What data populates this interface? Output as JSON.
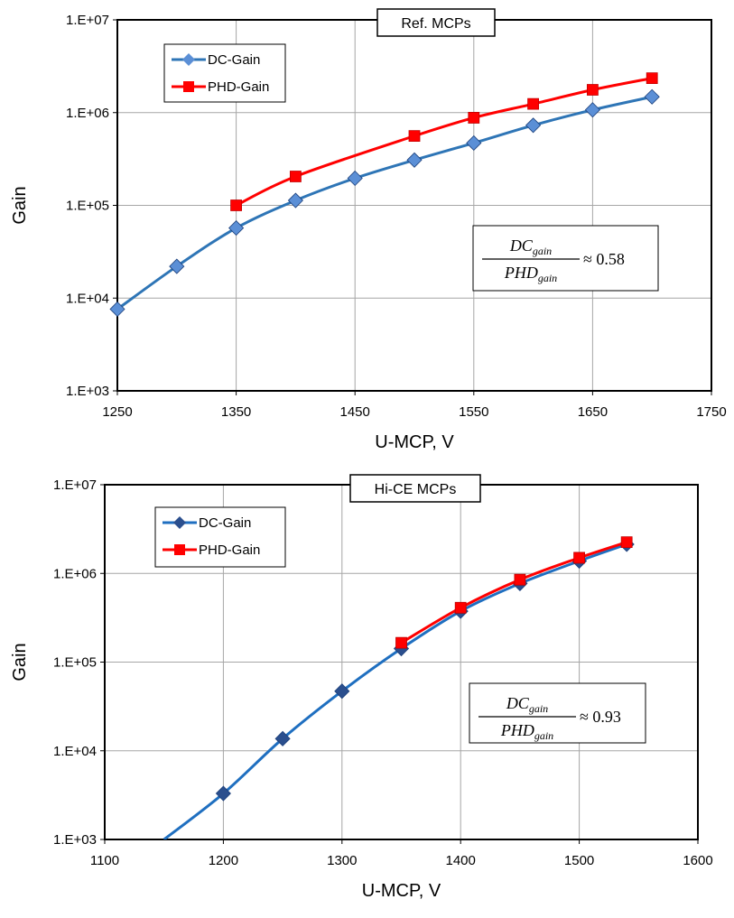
{
  "colors": {
    "dc_series_top": "#2E75B6",
    "dc_marker_top": "#5B8FD6",
    "dc_series_bottom": "#1F6FC0",
    "dc_marker_bottom": "#2B4F8E",
    "phd_series": "#FF0000",
    "grid": "#A6A6A6",
    "frame": "#000000"
  },
  "chart_data": [
    {
      "type": "line",
      "title": "Ref. MCPs",
      "xlabel": "U-MCP, V",
      "ylabel": "Gain",
      "yscale": "log",
      "xlim": [
        1250,
        1750
      ],
      "ylim": [
        1000,
        10000000
      ],
      "x_ticks": [
        "1250",
        "1350",
        "1450",
        "1550",
        "1650",
        "1750"
      ],
      "y_ticks": [
        "1.E+03",
        "1.E+04",
        "1.E+05",
        "1.E+06",
        "1.E+07"
      ],
      "grid": true,
      "legend_position": "top-left",
      "annotation": {
        "num": "DC",
        "num_sub": "gain",
        "den": "PHD",
        "den_sub": "gain",
        "rel": "≈ 0.58"
      },
      "series": [
        {
          "name": "DC-Gain",
          "marker": "diamond",
          "x": [
            1250,
            1300,
            1350,
            1400,
            1450,
            1500,
            1550,
            1600,
            1650,
            1700
          ],
          "y": [
            7600,
            22000,
            57000,
            113000,
            196000,
            308000,
            470000,
            730000,
            1070000,
            1480000
          ]
        },
        {
          "name": "PHD-Gain",
          "marker": "square",
          "x": [
            1350,
            1400,
            1500,
            1550,
            1600,
            1650,
            1700
          ],
          "y": [
            100000,
            205000,
            560000,
            880000,
            1240000,
            1760000,
            2350000
          ]
        }
      ]
    },
    {
      "type": "line",
      "title": "Hi-CE MCPs",
      "xlabel": "U-MCP, V",
      "ylabel": "Gain",
      "yscale": "log",
      "xlim": [
        1100,
        1600
      ],
      "ylim": [
        1000,
        10000000
      ],
      "x_ticks": [
        "1100",
        "1200",
        "1300",
        "1400",
        "1500",
        "1600"
      ],
      "y_ticks": [
        "1.E+03",
        "1.E+04",
        "1.E+05",
        "1.E+06",
        "1.E+07"
      ],
      "grid": true,
      "legend_position": "top-left",
      "annotation": {
        "num": "DC",
        "num_sub": "gain",
        "den": "PHD",
        "den_sub": "gain",
        "rel": "≈ 0.93"
      },
      "series": [
        {
          "name": "DC-Gain",
          "marker": "diamond",
          "line_extends_from": [
            1150,
            1000
          ],
          "x": [
            1200,
            1250,
            1300,
            1350,
            1400,
            1450,
            1500,
            1540
          ],
          "y": [
            3300,
            13700,
            47000,
            142000,
            375000,
            770000,
            1380000,
            2130000
          ]
        },
        {
          "name": "PHD-Gain",
          "marker": "square",
          "x": [
            1350,
            1400,
            1450,
            1500,
            1540
          ],
          "y": [
            165000,
            410000,
            850000,
            1500000,
            2250000
          ]
        }
      ]
    }
  ]
}
